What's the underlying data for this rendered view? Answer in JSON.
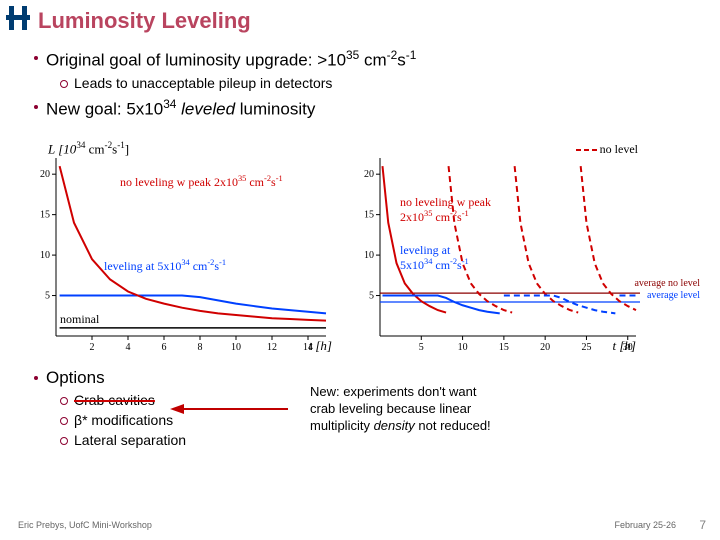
{
  "title": "Luminosity Leveling",
  "bullets": {
    "b1a": "Original goal of luminosity upgrade: >10",
    "b1a_sup1": "35",
    "b1a_mid": " cm",
    "b1a_sup2": "-2",
    "b1a_mid2": "s",
    "b1a_sup3": "-1",
    "b2a": "Leads to unacceptable pileup in detectors",
    "b1b_pre": "New goal: 5x10",
    "b1b_sup": "34",
    "b1b_lev": " leveled",
    "b1b_post": " luminosity"
  },
  "chartLeft": {
    "ylabel_pre": "L [10",
    "ylabel_sup": "34",
    "ylabel_mid": " cm",
    "ylabel_sup2": "-2",
    "ylabel_mid2": "s",
    "ylabel_sup3": "-1",
    "ylabel_post": "]",
    "xlabel": "t [h]",
    "xlim": [
      0,
      15
    ],
    "ylim": [
      0,
      22
    ],
    "xticks": [
      2,
      4,
      6,
      8,
      10,
      12,
      14
    ],
    "yticks": [
      5,
      10,
      15,
      20
    ],
    "nominal_label": "nominal",
    "red_curve": [
      [
        0.2,
        21
      ],
      [
        1,
        14
      ],
      [
        2,
        9.5
      ],
      [
        3,
        7
      ],
      [
        4,
        5.5
      ],
      [
        5,
        4.6
      ],
      [
        6,
        4
      ],
      [
        7,
        3.5
      ],
      [
        8,
        3.1
      ],
      [
        9,
        2.8
      ],
      [
        10,
        2.6
      ],
      [
        11,
        2.4
      ],
      [
        12,
        2.2
      ],
      [
        13,
        2.1
      ],
      [
        14,
        2.0
      ],
      [
        15,
        1.9
      ]
    ],
    "blue_curve": [
      [
        0.2,
        5
      ],
      [
        7,
        5
      ],
      [
        8,
        4.8
      ],
      [
        9,
        4.4
      ],
      [
        10,
        4.0
      ],
      [
        11,
        3.7
      ],
      [
        12,
        3.4
      ],
      [
        13,
        3.2
      ],
      [
        14,
        3.0
      ],
      [
        15,
        2.8
      ]
    ],
    "black_curve": [
      [
        0.2,
        1
      ],
      [
        15,
        1
      ]
    ],
    "red_label1": "no leveling w peak 2x10",
    "red_label1_sup": "35",
    "red_label1_mid": " cm",
    "red_label1_sup2": "-2",
    "red_label1_mid2": "s",
    "red_label1_sup3": "-1",
    "blue_label": "leveling at 5x10",
    "blue_label_sup": "34",
    "blue_label_mid": " cm",
    "blue_label_sup2": "-2",
    "blue_label_mid2": "s",
    "blue_label_sup3": "-1",
    "colors": {
      "red": "#d00000",
      "blue": "#0040ff",
      "black": "#000000",
      "axis": "#000000"
    }
  },
  "chartRight": {
    "xlabel": "t [h]",
    "xlim": [
      0,
      31
    ],
    "ylim": [
      0,
      22
    ],
    "xticks": [
      5,
      10,
      15,
      20,
      25,
      30
    ],
    "yticks": [
      5,
      10,
      15,
      20
    ],
    "nolevel_label": "no level",
    "avg_nolevel": "average no level",
    "avg_level": "average level",
    "red_label1": "no leveling w peak",
    "red_label2_pre": "2x10",
    "red_label2_sup": "35",
    "red_label2_mid": " cm",
    "red_label2_sup2": "-2",
    "red_label2_mid2": "s",
    "red_label2_sup3": "-1",
    "blue_label1": "leveling at",
    "blue_label2_pre": "5x10",
    "blue_label2_sup": "34",
    "blue_label2_mid": " cm",
    "blue_label2_sup2": "-2",
    "blue_label2_mid2": "s",
    "blue_label2_sup3": "-1",
    "red_solid": [
      [
        0.3,
        21
      ],
      [
        1,
        14
      ],
      [
        2,
        9
      ],
      [
        3,
        6.5
      ],
      [
        4,
        5.2
      ],
      [
        5,
        4.3
      ],
      [
        6,
        3.7
      ],
      [
        7,
        3.2
      ],
      [
        8,
        2.9
      ]
    ],
    "red_dash2": [
      [
        8.3,
        21
      ],
      [
        9,
        14
      ],
      [
        10,
        9
      ],
      [
        11,
        6.5
      ],
      [
        12,
        5.2
      ],
      [
        13,
        4.3
      ],
      [
        14,
        3.7
      ],
      [
        15,
        3.2
      ],
      [
        16,
        2.9
      ]
    ],
    "red_dash3": [
      [
        16.3,
        21
      ],
      [
        17,
        14
      ],
      [
        18,
        9
      ],
      [
        19,
        6.5
      ],
      [
        20,
        5.2
      ],
      [
        21,
        4.3
      ],
      [
        22,
        3.7
      ],
      [
        23,
        3.2
      ],
      [
        24,
        2.9
      ]
    ],
    "red_dash4": [
      [
        24.3,
        21
      ],
      [
        25,
        14
      ],
      [
        26,
        9
      ],
      [
        27,
        6.5
      ],
      [
        28,
        5.2
      ],
      [
        29,
        4.3
      ],
      [
        30,
        3.7
      ],
      [
        31,
        3.2
      ]
    ],
    "blue_solid": [
      [
        0.3,
        5
      ],
      [
        7,
        5
      ],
      [
        8,
        4.7
      ],
      [
        9,
        4.2
      ],
      [
        10,
        3.8
      ],
      [
        11,
        3.5
      ],
      [
        12,
        3.2
      ],
      [
        13,
        3.0
      ],
      [
        14.5,
        2.8
      ]
    ],
    "blue_dash2": [
      [
        15,
        5
      ],
      [
        21,
        5
      ],
      [
        22,
        4.7
      ],
      [
        23,
        4.2
      ],
      [
        24,
        3.8
      ],
      [
        25,
        3.5
      ],
      [
        26,
        3.2
      ],
      [
        27,
        3.0
      ],
      [
        28.5,
        2.8
      ]
    ],
    "blue_dash3": [
      [
        29,
        5
      ],
      [
        31,
        5
      ]
    ],
    "red_avg": 5.3,
    "blue_avg": 4.2,
    "colors": {
      "red": "#d00000",
      "blue": "#0040ff",
      "darkred": "#8b0000",
      "axis": "#000000"
    }
  },
  "options": {
    "title": "Options",
    "o1": "Crab cavities",
    "o2_beta": "β",
    "o2_post": "* modifications",
    "o3": "Lateral separation"
  },
  "note": {
    "l1": "New: experiments don't want",
    "l2": "crab leveling because linear",
    "l3_pre": "multiplicity ",
    "l3_it": "density",
    "l3_post": " not reduced!"
  },
  "footer": {
    "left": "Eric Prebys, UofC Mini-Workshop",
    "right": "February 25-26",
    "page": "7"
  }
}
